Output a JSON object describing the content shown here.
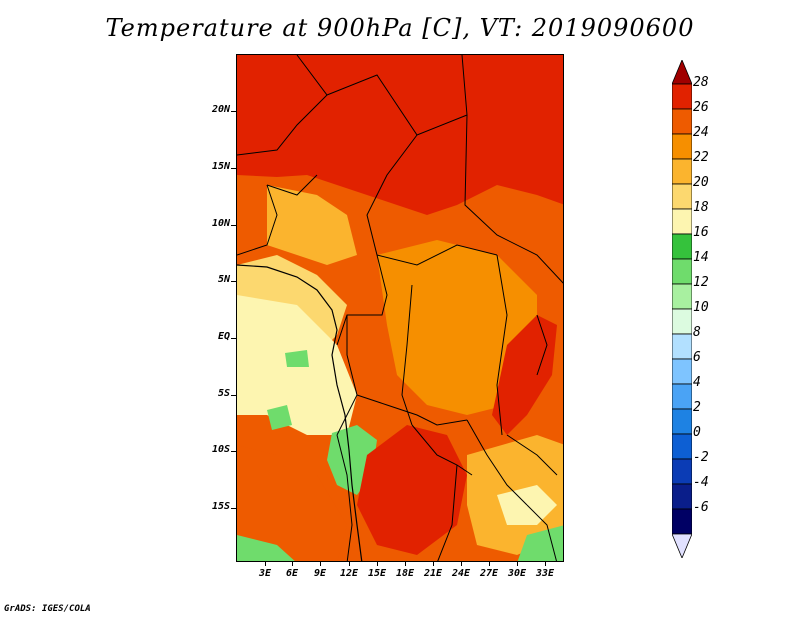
{
  "title": "Temperature at 900hPa [C], VT: 2019090600",
  "credit": "GrADS: IGES/COLA",
  "lat_labels": [
    "20N",
    "15N",
    "10N",
    "5N",
    "EQ",
    "5S",
    "10S",
    "15S"
  ],
  "lon_labels": [
    "3E",
    "6E",
    "9E",
    "12E",
    "15E",
    "18E",
    "21E",
    "24E",
    "27E",
    "30E",
    "33E"
  ],
  "colorbar": {
    "labels": [
      "28",
      "26",
      "24",
      "22",
      "20",
      "18",
      "16",
      "14",
      "12",
      "10",
      "8",
      "6",
      "4",
      "2",
      "0",
      "-2",
      "-4",
      "-6"
    ],
    "colors": [
      "#a00000",
      "#e12200",
      "#ee5b00",
      "#f68f00",
      "#fbb42e",
      "#fcd86f",
      "#fdf5b0",
      "#35c23c",
      "#6fdc6c",
      "#a8f0a0",
      "#dcfbe0",
      "#b2e0ff",
      "#7ec4ff",
      "#4aa3f5",
      "#1e82e3",
      "#0d5fd3",
      "#0b3cb5",
      "#0a1e8a",
      "#000064",
      "#e1e1ff"
    ]
  },
  "regions": {
    "sahara": "#e12200",
    "sahel": "#ee5b00",
    "congo": "#f68f00",
    "coast": "#fcd86f",
    "highland": "#fdf5b0",
    "green": "#6fdc6c",
    "dark_green": "#35c23c",
    "kalahari": "#e12200",
    "south": "#fbb42e"
  }
}
